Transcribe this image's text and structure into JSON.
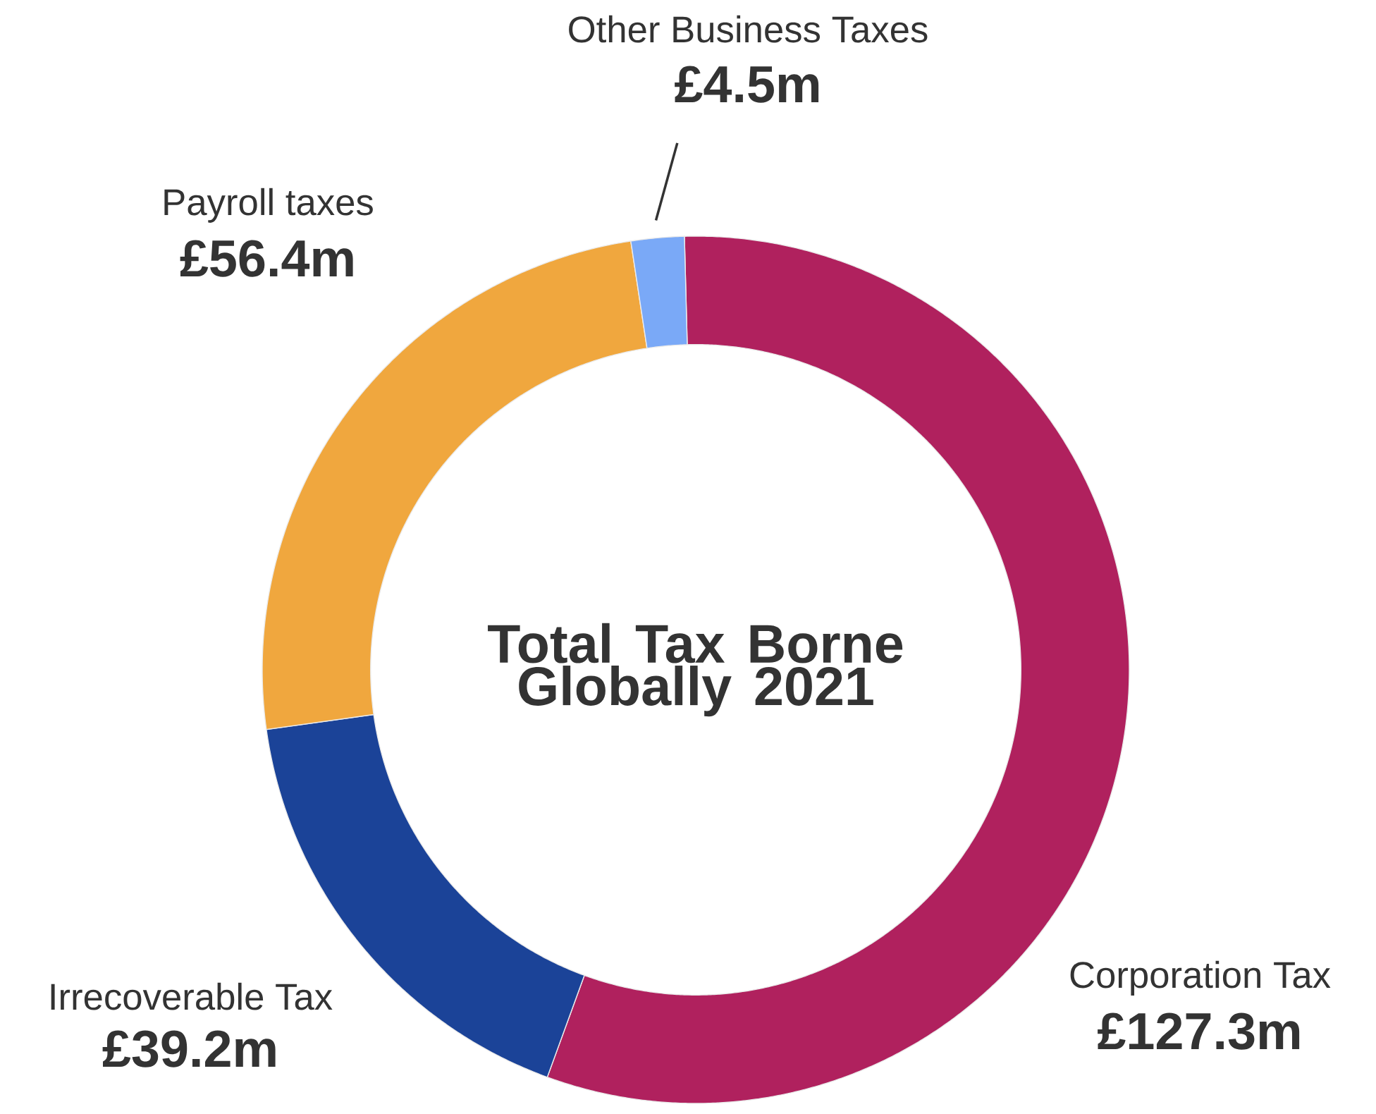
{
  "chart_data": {
    "type": "donut",
    "title": "Total Tax Borne Globally 2021",
    "categories": [
      "Corporation Tax",
      "Irrecoverable Tax",
      "Payroll taxes",
      "Other Business Taxes"
    ],
    "values": [
      127.3,
      39.2,
      56.4,
      4.5
    ],
    "colors": [
      "#b0215e",
      "#1b4398",
      "#f0a73e",
      "#7aa9f7"
    ],
    "value_labels": [
      "£127.3m",
      "£39.2m",
      "£56.4m",
      "£4.5m"
    ]
  }
}
